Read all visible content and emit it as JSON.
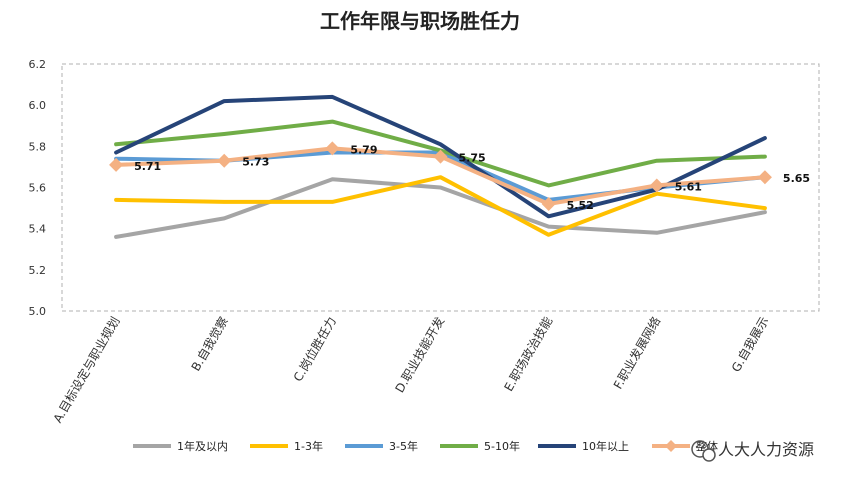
{
  "chart_data": {
    "type": "line",
    "title": "工作年限与职场胜任力",
    "categories": [
      "A.目标设定与职业规划",
      "B.自我觉察",
      "C.岗位胜任力",
      "D.职业技能开发",
      "E.职场政治技能",
      "F.职业发展网络",
      "G.自我展示"
    ],
    "ylim": [
      5.0,
      6.2
    ],
    "yticks": [
      "5.0",
      "5.2",
      "5.4",
      "5.6",
      "5.8",
      "6.0",
      "6.2"
    ],
    "series": [
      {
        "name": "1年及以内",
        "color": "#A5A5A5",
        "values": [
          5.36,
          5.45,
          5.64,
          5.6,
          5.41,
          5.38,
          5.48
        ]
      },
      {
        "name": "1-3年",
        "color": "#FFC000",
        "values": [
          5.54,
          5.53,
          5.53,
          5.65,
          5.37,
          5.57,
          5.5
        ]
      },
      {
        "name": "3-5年",
        "color": "#5B9BD5",
        "values": [
          5.74,
          5.73,
          5.77,
          5.77,
          5.54,
          5.6,
          5.65
        ]
      },
      {
        "name": "5-10年",
        "color": "#70AD47",
        "values": [
          5.81,
          5.86,
          5.92,
          5.78,
          5.61,
          5.73,
          5.75
        ]
      },
      {
        "name": "10年以上",
        "color": "#264478",
        "values": [
          5.77,
          6.02,
          6.04,
          5.81,
          5.46,
          5.59,
          5.84
        ]
      },
      {
        "name": "整体",
        "color": "#F4B183",
        "values": [
          5.71,
          5.73,
          5.79,
          5.75,
          5.52,
          5.61,
          5.65
        ],
        "marker": "diamond"
      }
    ],
    "data_labels": [
      "5.71",
      "5.73",
      "5.79",
      "5.75",
      "5.52",
      "5.61",
      "5.65"
    ],
    "grid": false,
    "legend_position": "bottom"
  },
  "watermark": {
    "text": "人大人力资源",
    "icon": "wechat-icon"
  }
}
